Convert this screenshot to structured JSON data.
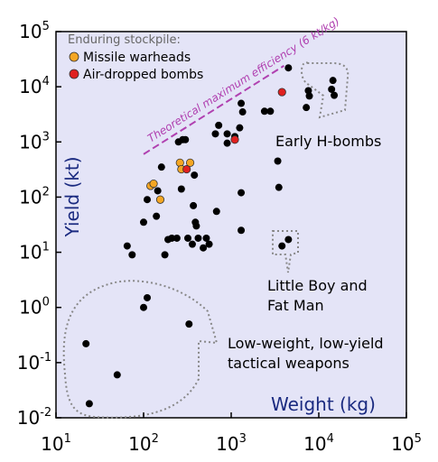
{
  "chart_data": {
    "type": "scatter",
    "xscale": "log",
    "yscale": "log",
    "xlim": [
      10,
      100000
    ],
    "ylim": [
      0.01,
      100000
    ],
    "xlabel": "Weight (kg)",
    "ylabel": "Yield (kt)",
    "x_ticks": [
      {
        "value": 10,
        "base": "10",
        "exp": "1"
      },
      {
        "value": 100,
        "base": "10",
        "exp": "2"
      },
      {
        "value": 1000,
        "base": "10",
        "exp": "3"
      },
      {
        "value": 10000,
        "base": "10",
        "exp": "4"
      },
      {
        "value": 100000,
        "base": "10",
        "exp": "5"
      }
    ],
    "y_ticks": [
      {
        "value": 0.01,
        "base": "10",
        "exp": "-2"
      },
      {
        "value": 0.1,
        "base": "10",
        "exp": "-1"
      },
      {
        "value": 1,
        "base": "10",
        "exp": "0"
      },
      {
        "value": 10,
        "base": "10",
        "exp": "1"
      },
      {
        "value": 100,
        "base": "10",
        "exp": "2"
      },
      {
        "value": 1000,
        "base": "10",
        "exp": "3"
      },
      {
        "value": 10000,
        "base": "10",
        "exp": "4"
      },
      {
        "value": 100000,
        "base": "10",
        "exp": "5"
      }
    ],
    "grid": false,
    "legend": {
      "title": "Enduring stockpile:",
      "placement": "top-left",
      "entries": [
        {
          "label": "Missile warheads",
          "color": "#f5a623"
        },
        {
          "label": "Air-dropped bombs",
          "color": "#e02020"
        }
      ]
    },
    "efficiency_line": {
      "label": "Theoretical maximum efficiency (6 kt/kg)",
      "kt_per_kg": 6,
      "x_range": [
        100,
        4000
      ],
      "color": "#b040b0"
    },
    "annotations": [
      {
        "text": [
          "Early H-bombs"
        ],
        "anchor": [
          20000,
          1000
        ]
      },
      {
        "text": [
          "Little Boy and",
          "Fat Man"
        ],
        "anchor": [
          4000,
          3
        ]
      },
      {
        "text": [
          "Low-weight, low-yield",
          "tactical weapons"
        ],
        "anchor": [
          1000,
          0.08
        ]
      }
    ],
    "series": [
      {
        "category": "other",
        "color": "#000000",
        "points": [
          [
            65,
            13
          ],
          [
            74,
            9
          ],
          [
            100,
            35
          ],
          [
            110,
            90
          ],
          [
            140,
            45
          ],
          [
            145,
            130
          ],
          [
            160,
            350
          ],
          [
            175,
            9
          ],
          [
            190,
            17
          ],
          [
            210,
            18
          ],
          [
            240,
            18
          ],
          [
            250,
            1000
          ],
          [
            270,
            140
          ],
          [
            280,
            1100
          ],
          [
            300,
            1100
          ],
          [
            320,
            18
          ],
          [
            360,
            14
          ],
          [
            370,
            70
          ],
          [
            380,
            250
          ],
          [
            390,
            35
          ],
          [
            400,
            30
          ],
          [
            420,
            18
          ],
          [
            480,
            12
          ],
          [
            520,
            18
          ],
          [
            560,
            14
          ],
          [
            660,
            1400
          ],
          [
            680,
            55
          ],
          [
            720,
            2000
          ],
          [
            900,
            1400
          ],
          [
            900,
            950
          ],
          [
            1100,
            1250
          ],
          [
            1250,
            1800
          ],
          [
            1300,
            25
          ],
          [
            1300,
            120
          ],
          [
            1300,
            5000
          ],
          [
            1350,
            3500
          ],
          [
            2400,
            3600
          ],
          [
            2800,
            3600
          ],
          [
            3400,
            450
          ],
          [
            3500,
            150
          ],
          [
            3800,
            13
          ],
          [
            4500,
            17
          ],
          [
            4500,
            22000
          ],
          [
            7200,
            4200
          ],
          [
            7600,
            8500
          ],
          [
            7800,
            6800
          ],
          [
            14000,
            9000
          ],
          [
            14500,
            13000
          ],
          [
            15000,
            7000
          ],
          [
            110,
            1.5
          ],
          [
            100,
            1
          ],
          [
            22,
            0.22
          ],
          [
            24,
            0.018
          ],
          [
            50,
            0.06
          ],
          [
            330,
            0.5
          ]
        ]
      },
      {
        "category": "missile",
        "name": "Missile warheads",
        "color": "#f5a623",
        "points": [
          [
            120,
            160
          ],
          [
            130,
            175
          ],
          [
            155,
            90
          ],
          [
            260,
            420
          ],
          [
            270,
            320
          ],
          [
            340,
            420
          ]
        ]
      },
      {
        "category": "bomb",
        "name": "Air-dropped bombs",
        "color": "#e02020",
        "points": [
          [
            310,
            320
          ],
          [
            1100,
            1100
          ],
          [
            3800,
            8000
          ]
        ]
      }
    ]
  }
}
